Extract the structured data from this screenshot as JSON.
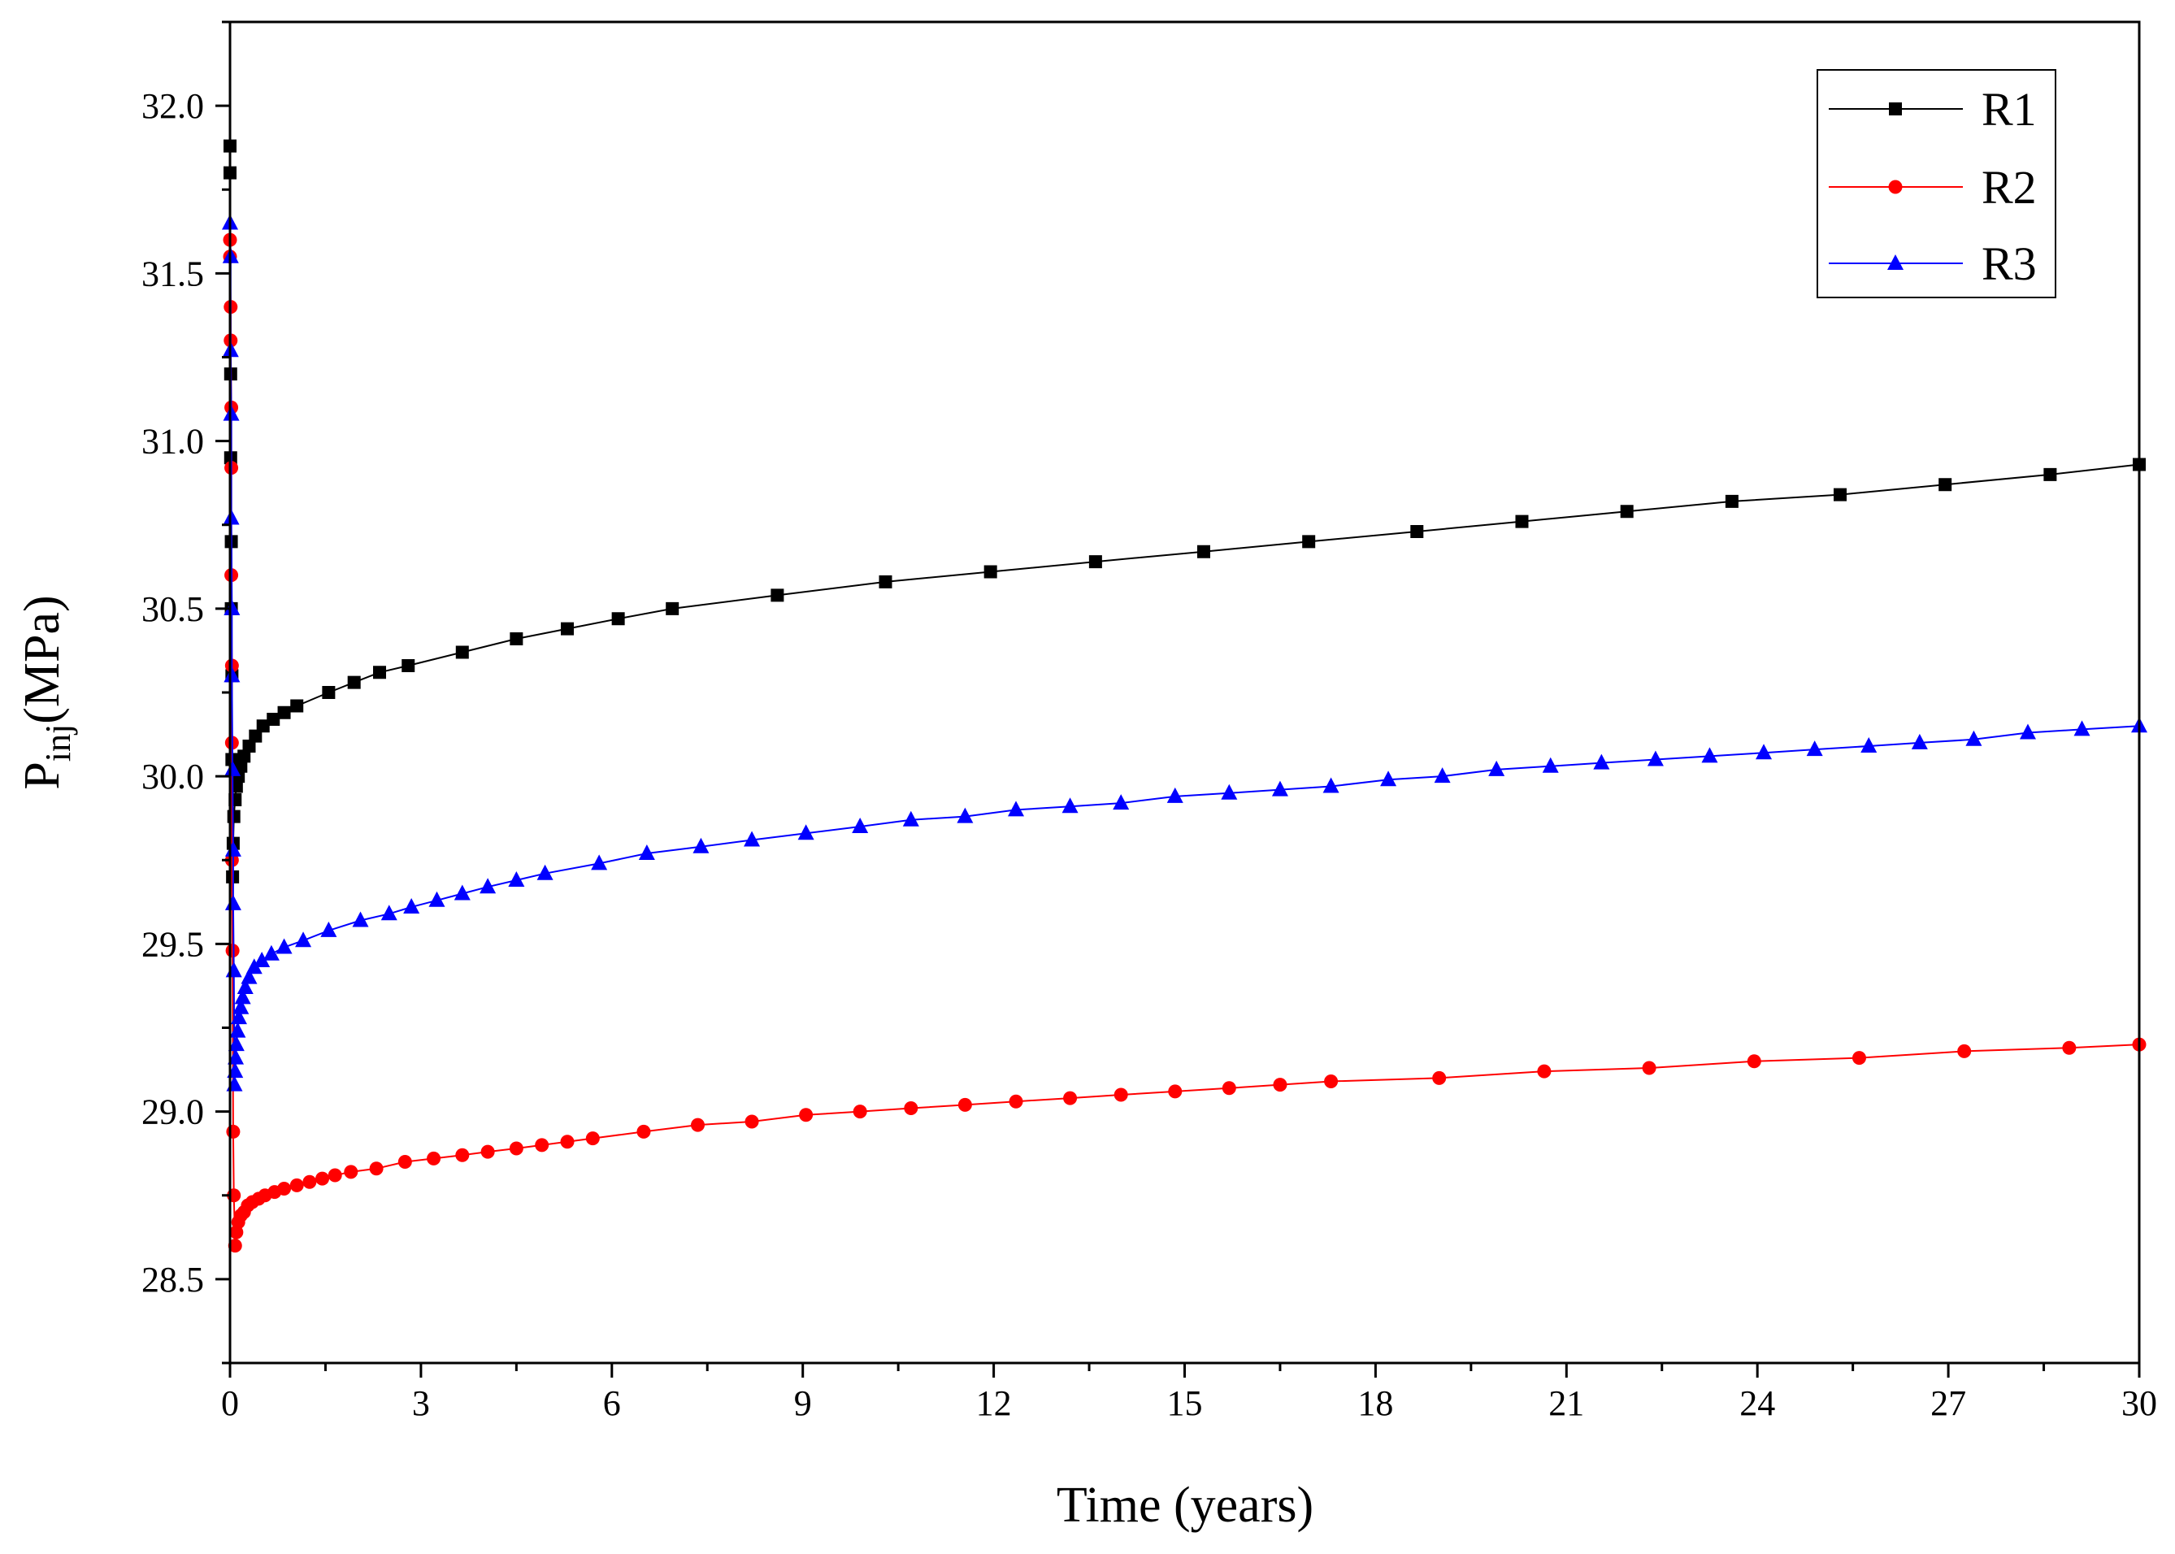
{
  "chart_data": {
    "type": "line",
    "title": "",
    "xlabel": "Time (years)",
    "ylabel": {
      "main": "P",
      "sub": "inj",
      "unit": "(MPa)"
    },
    "xlim": [
      0,
      30
    ],
    "ylim": [
      28.25,
      32.25
    ],
    "x_ticks": [
      0,
      3,
      6,
      9,
      12,
      15,
      18,
      21,
      24,
      27,
      30
    ],
    "x_tick_labels": [
      "0",
      "3",
      "6",
      "9",
      "12",
      "15",
      "18",
      "21",
      "24",
      "27",
      "30"
    ],
    "y_ticks": [
      28.5,
      29.0,
      29.5,
      30.0,
      30.5,
      31.0,
      31.5,
      32.0
    ],
    "y_tick_labels": [
      "28.5",
      "29.0",
      "29.5",
      "30.0",
      "30.5",
      "31.0",
      "31.5",
      "32.0"
    ],
    "grid": false,
    "legend_position": "top-right",
    "series": [
      {
        "name": "R1",
        "color": "#000000",
        "marker": "square",
        "x": [
          0.0,
          0.0,
          0.01,
          0.01,
          0.02,
          0.02,
          0.03,
          0.03,
          0.04,
          0.05,
          0.06,
          0.08,
          0.1,
          0.13,
          0.17,
          0.22,
          0.3,
          0.4,
          0.52,
          0.68,
          0.85,
          1.05,
          1.55,
          1.95,
          2.35,
          2.8,
          3.65,
          4.5,
          5.3,
          6.1,
          6.95,
          8.6,
          10.3,
          11.95,
          13.6,
          15.3,
          16.95,
          18.65,
          20.3,
          21.95,
          23.6,
          25.3,
          26.95,
          28.6,
          30.0
        ],
        "y": [
          31.88,
          31.8,
          31.2,
          30.95,
          30.7,
          30.5,
          30.3,
          30.05,
          29.7,
          29.8,
          29.88,
          29.93,
          29.97,
          30.0,
          30.03,
          30.06,
          30.09,
          30.12,
          30.15,
          30.17,
          30.19,
          30.21,
          30.25,
          30.28,
          30.31,
          30.33,
          30.37,
          30.41,
          30.44,
          30.47,
          30.5,
          30.54,
          30.58,
          30.61,
          30.64,
          30.67,
          30.7,
          30.73,
          30.76,
          30.79,
          30.82,
          30.84,
          30.87,
          30.9,
          30.93
        ]
      },
      {
        "name": "R2",
        "color": "#ff0000",
        "marker": "circle",
        "x": [
          0.0,
          0.0,
          0.01,
          0.01,
          0.02,
          0.02,
          0.02,
          0.03,
          0.03,
          0.03,
          0.04,
          0.05,
          0.06,
          0.08,
          0.1,
          0.13,
          0.17,
          0.22,
          0.28,
          0.35,
          0.45,
          0.55,
          0.7,
          0.85,
          1.05,
          1.25,
          1.45,
          1.65,
          1.9,
          2.3,
          2.75,
          3.2,
          3.65,
          4.05,
          4.5,
          4.9,
          5.3,
          5.7,
          6.5,
          7.35,
          8.2,
          9.05,
          9.9,
          10.7,
          11.55,
          12.35,
          13.2,
          14.0,
          14.85,
          15.7,
          16.5,
          17.3,
          19.0,
          20.65,
          22.3,
          23.95,
          25.6,
          27.25,
          28.9,
          30.0
        ],
        "y": [
          31.6,
          31.55,
          31.4,
          31.3,
          31.1,
          30.92,
          30.6,
          30.33,
          30.1,
          29.75,
          29.48,
          28.94,
          28.75,
          28.6,
          28.64,
          28.67,
          28.69,
          28.7,
          28.72,
          28.73,
          28.74,
          28.75,
          28.76,
          28.77,
          28.78,
          28.79,
          28.8,
          28.81,
          28.82,
          28.83,
          28.85,
          28.86,
          28.87,
          28.88,
          28.89,
          28.9,
          28.91,
          28.92,
          28.94,
          28.96,
          28.97,
          28.99,
          29.0,
          29.01,
          29.02,
          29.03,
          29.04,
          29.05,
          29.06,
          29.07,
          29.08,
          29.09,
          29.1,
          29.12,
          29.13,
          29.15,
          29.16,
          29.18,
          29.19,
          29.2
        ]
      },
      {
        "name": "R3",
        "color": "#0000ff",
        "marker": "triangle",
        "x": [
          0.0,
          0.01,
          0.01,
          0.02,
          0.02,
          0.03,
          0.03,
          0.04,
          0.05,
          0.05,
          0.06,
          0.07,
          0.08,
          0.09,
          0.1,
          0.12,
          0.14,
          0.17,
          0.2,
          0.24,
          0.3,
          0.38,
          0.5,
          0.65,
          0.85,
          1.15,
          1.55,
          2.05,
          2.5,
          2.85,
          3.25,
          3.65,
          4.05,
          4.5,
          4.95,
          5.8,
          6.55,
          7.4,
          8.2,
          9.05,
          9.9,
          10.7,
          11.55,
          12.35,
          13.2,
          14.0,
          14.85,
          15.7,
          16.5,
          17.3,
          18.2,
          19.05,
          19.9,
          20.75,
          21.55,
          22.4,
          23.25,
          24.1,
          24.9,
          25.75,
          26.55,
          27.4,
          28.25,
          29.1,
          30.0
        ],
        "y": [
          31.65,
          31.55,
          31.27,
          31.08,
          30.77,
          30.5,
          30.3,
          30.02,
          29.78,
          29.62,
          29.42,
          29.08,
          29.12,
          29.16,
          29.2,
          29.24,
          29.28,
          29.31,
          29.34,
          29.37,
          29.4,
          29.43,
          29.45,
          29.47,
          29.49,
          29.51,
          29.54,
          29.57,
          29.59,
          29.61,
          29.63,
          29.65,
          29.67,
          29.69,
          29.71,
          29.74,
          29.77,
          29.79,
          29.81,
          29.83,
          29.85,
          29.87,
          29.88,
          29.9,
          29.91,
          29.92,
          29.94,
          29.95,
          29.96,
          29.97,
          29.99,
          30.0,
          30.02,
          30.03,
          30.04,
          30.05,
          30.06,
          30.07,
          30.08,
          30.09,
          30.1,
          30.11,
          30.13,
          30.14,
          30.15
        ]
      }
    ]
  }
}
